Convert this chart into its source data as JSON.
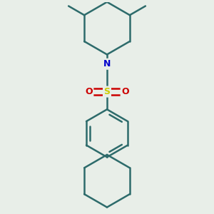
{
  "background_color": "#e8eee8",
  "bond_color": "#2d6b6b",
  "nitrogen_color": "#0000cc",
  "sulfur_color": "#cccc00",
  "oxygen_color": "#cc0000",
  "bond_width": 1.8,
  "figsize": [
    3.0,
    3.0
  ],
  "dpi": 100,
  "xlim": [
    -1.5,
    1.5
  ],
  "ylim": [
    -2.2,
    2.2
  ]
}
